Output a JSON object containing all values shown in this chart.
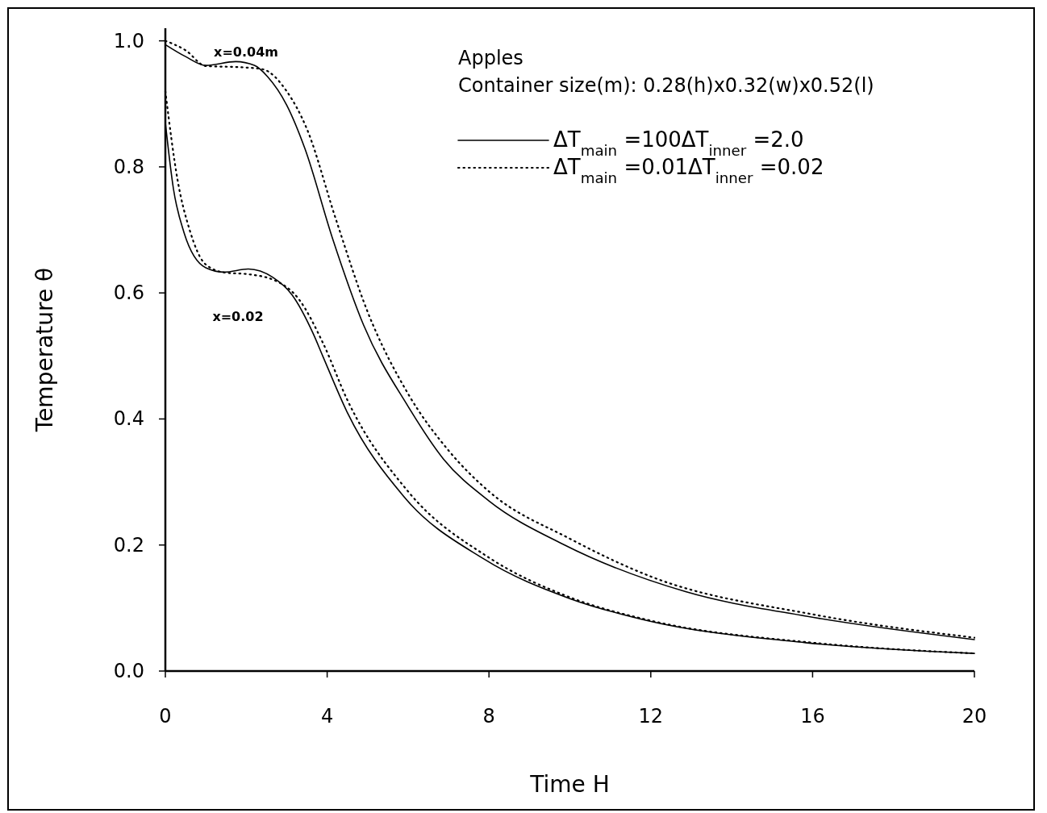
{
  "chart_data": {
    "type": "line",
    "title": "Apples",
    "subtitle": "Container size(m): 0.28(h)x0.32(w)x0.52(l)",
    "xlabel": "Time H",
    "ylabel": "Temperature θ",
    "xlim": [
      0,
      20
    ],
    "ylim": [
      0,
      1.02
    ],
    "xticks": [
      0,
      4,
      8,
      12,
      16,
      20
    ],
    "yticks": [
      {
        "value": 0,
        "label": "0.0"
      },
      {
        "value": 0.2,
        "label": "0.2"
      },
      {
        "value": 0.4,
        "label": "0.4"
      },
      {
        "value": 0.6,
        "label": "0.6"
      },
      {
        "value": 0.8,
        "label": "0.8"
      },
      {
        "value": 1,
        "label": "1.0"
      }
    ],
    "grid": false,
    "legend": "top right",
    "annotations": [
      "x=0.04m",
      "x=0.02"
    ],
    "series": [
      {
        "name": "ΔT$_{main}$ =100ΔT$_{inner}$ =2.0",
        "color": "#000000",
        "line_style": "solid",
        "x": [
          0,
          0.5,
          1,
          1.74,
          2.2,
          2.53,
          3,
          3.45,
          4.13,
          4.9,
          6,
          6.88,
          8,
          9.87,
          12.86,
          15.85,
          20
        ],
        "values": [
          0.994,
          0.975,
          0.961,
          0.967,
          0.961,
          0.943,
          0.898,
          0.829,
          0.687,
          0.549,
          0.42,
          0.336,
          0.27,
          0.2,
          0.126,
          0.087,
          0.05
        ]
      },
      {
        "name": "ΔT$_{main}$ =0.01ΔT$_{inner}$ =0.02",
        "color": "#000000",
        "line_style": "dotted",
        "x": [
          0,
          0.5,
          1,
          1.9,
          2.4,
          3,
          3.5,
          4.2,
          5,
          6,
          7,
          8,
          10,
          12,
          16,
          20
        ],
        "values": [
          1.0,
          0.985,
          0.96,
          0.958,
          0.955,
          0.92,
          0.86,
          0.72,
          0.57,
          0.44,
          0.35,
          0.285,
          0.21,
          0.15,
          0.09,
          0.053
        ]
      },
      {
        "color": "#000000",
        "line_style": "solid",
        "x": [
          0,
          0.2,
          0.46,
          1,
          1.46,
          2.05,
          2.65,
          3.13,
          3.65,
          3.89,
          4.5,
          5.88,
          7.87,
          10,
          11.85,
          15.83,
          20
        ],
        "values": [
          0.87,
          0.765,
          0.696,
          0.64,
          0.633,
          0.638,
          0.625,
          0.597,
          0.536,
          0.5,
          0.41,
          0.278,
          0.178,
          0.115,
          0.081,
          0.045,
          0.028
        ]
      },
      {
        "color": "#000000",
        "line_style": "dotted",
        "x": [
          0,
          0.3,
          0.6,
          1,
          1.5,
          2,
          2.7,
          3.3,
          3.9,
          4.5,
          6,
          8,
          10,
          12,
          16,
          20
        ],
        "values": [
          0.92,
          0.78,
          0.7,
          0.645,
          0.632,
          0.63,
          0.62,
          0.59,
          0.52,
          0.43,
          0.285,
          0.18,
          0.117,
          0.08,
          0.045,
          0.028
        ]
      }
    ]
  }
}
